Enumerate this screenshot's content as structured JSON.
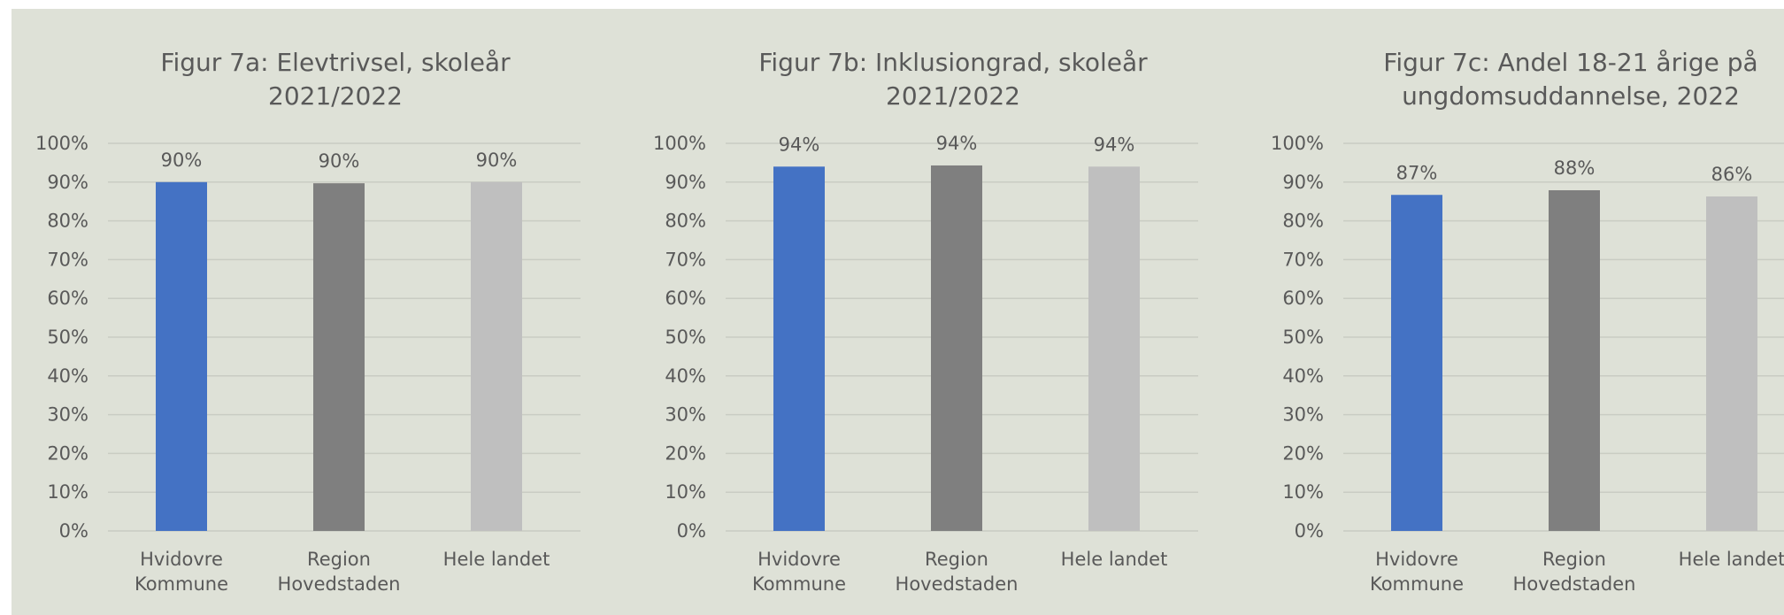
{
  "chart_data": [
    {
      "type": "bar",
      "title": "Figur 7a: Elevtrivsel, skoleår\n2021/2022",
      "categories": [
        "Hvidovre\nKommune",
        "Region\nHovedstaden",
        "Hele landet"
      ],
      "values": [
        90,
        89.7,
        90
      ],
      "value_labels": [
        "90%",
        "90%",
        "90%"
      ],
      "colors": [
        "#4472c4",
        "#7f7f7f",
        "#bfbfbf"
      ],
      "ylim": [
        0,
        100
      ],
      "yticks": [
        {
          "value": 0,
          "label": "0%"
        },
        {
          "value": 10,
          "label": "10%"
        },
        {
          "value": 20,
          "label": "20%"
        },
        {
          "value": 30,
          "label": "30%"
        },
        {
          "value": 40,
          "label": "40%"
        },
        {
          "value": 50,
          "label": "50%"
        },
        {
          "value": 60,
          "label": "60%"
        },
        {
          "value": 70,
          "label": "70%"
        },
        {
          "value": 80,
          "label": "80%"
        },
        {
          "value": 90,
          "label": "90%"
        },
        {
          "value": 100,
          "label": "100%"
        }
      ],
      "grid": true
    },
    {
      "type": "bar",
      "title": "Figur 7b: Inklusiongrad, skoleår\n2021/2022",
      "categories": [
        "Hvidovre\nKommune",
        "Region\nHovedstaden",
        "Hele landet"
      ],
      "values": [
        94,
        94.3,
        94
      ],
      "value_labels": [
        "94%",
        "94%",
        "94%"
      ],
      "colors": [
        "#4472c4",
        "#7f7f7f",
        "#bfbfbf"
      ],
      "ylim": [
        0,
        100
      ],
      "yticks": [
        {
          "value": 0,
          "label": "0%"
        },
        {
          "value": 10,
          "label": "10%"
        },
        {
          "value": 20,
          "label": "20%"
        },
        {
          "value": 30,
          "label": "30%"
        },
        {
          "value": 40,
          "label": "40%"
        },
        {
          "value": 50,
          "label": "50%"
        },
        {
          "value": 60,
          "label": "60%"
        },
        {
          "value": 70,
          "label": "70%"
        },
        {
          "value": 80,
          "label": "80%"
        },
        {
          "value": 90,
          "label": "90%"
        },
        {
          "value": 100,
          "label": "100%"
        }
      ],
      "grid": true
    },
    {
      "type": "bar",
      "title": "Figur 7c: Andel 18-21 årige på\nungdomsuddannelse, 2022",
      "categories": [
        "Hvidovre\nKommune",
        "Region\nHovedstaden",
        "Hele landet"
      ],
      "values": [
        86.7,
        87.9,
        86.3
      ],
      "value_labels": [
        "87%",
        "88%",
        "86%"
      ],
      "colors": [
        "#4472c4",
        "#7f7f7f",
        "#bfbfbf"
      ],
      "ylim": [
        0,
        100
      ],
      "yticks": [
        {
          "value": 0,
          "label": "0%"
        },
        {
          "value": 10,
          "label": "10%"
        },
        {
          "value": 20,
          "label": "20%"
        },
        {
          "value": 30,
          "label": "30%"
        },
        {
          "value": 40,
          "label": "40%"
        },
        {
          "value": 50,
          "label": "50%"
        },
        {
          "value": 60,
          "label": "60%"
        },
        {
          "value": 70,
          "label": "70%"
        },
        {
          "value": 80,
          "label": "80%"
        },
        {
          "value": 90,
          "label": "90%"
        },
        {
          "value": 100,
          "label": "100%"
        }
      ],
      "grid": true
    }
  ]
}
